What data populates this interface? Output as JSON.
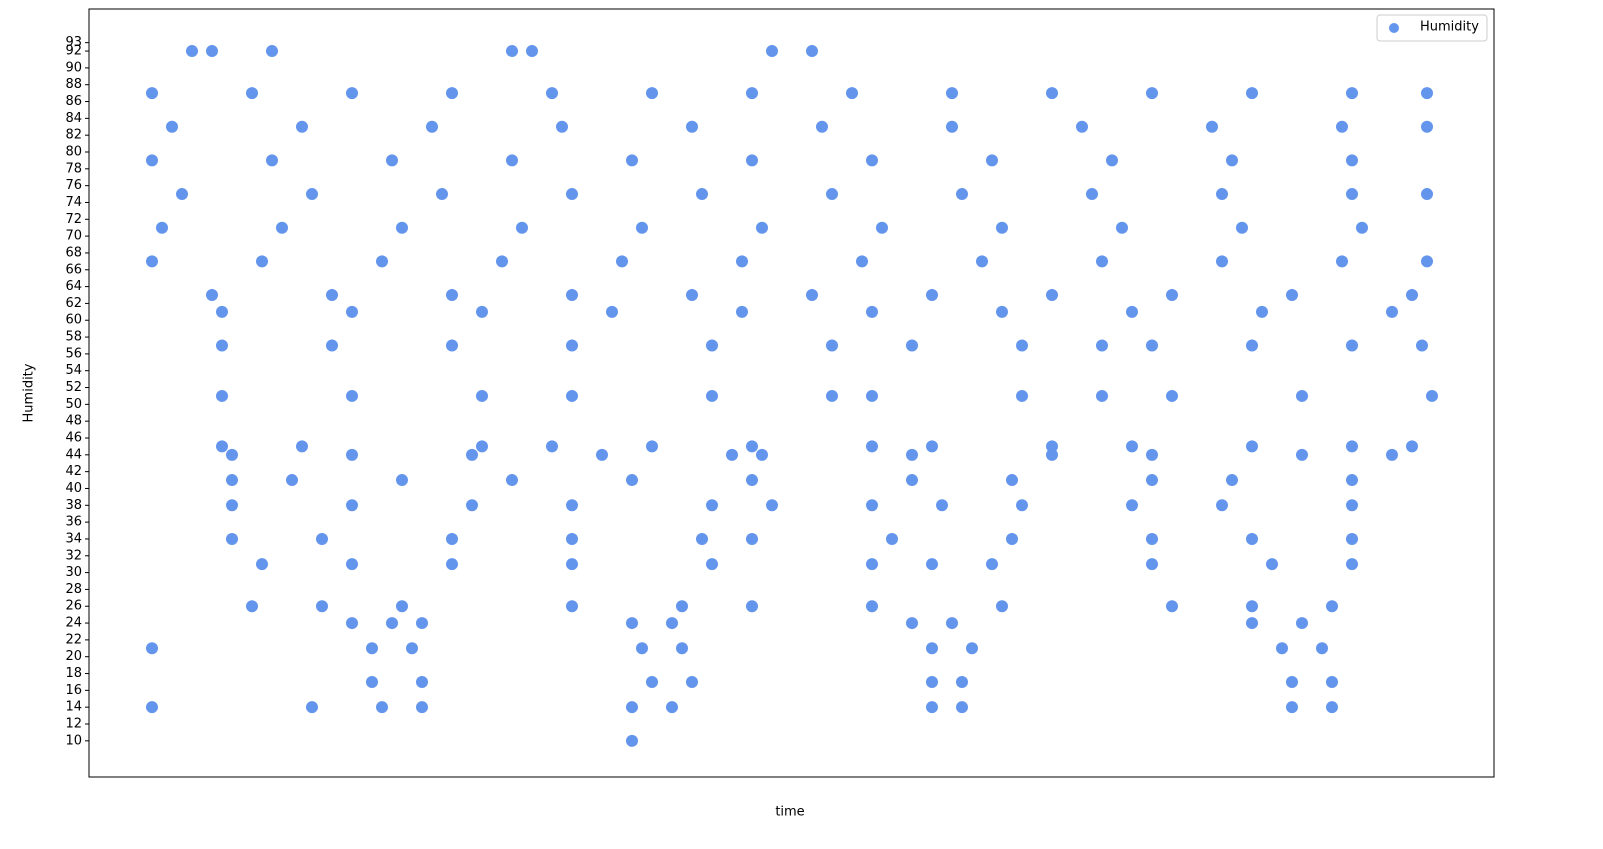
{
  "chart_data": {
    "type": "scatter",
    "x_label": "time",
    "y_label": "Humidity",
    "xlim": [
      -63,
      1342
    ],
    "ylim": [
      5.7,
      97
    ],
    "yticks": [
      10,
      12,
      14,
      16,
      18,
      20,
      22,
      24,
      26,
      28,
      30,
      32,
      34,
      36,
      38,
      40,
      42,
      44,
      46,
      48,
      50,
      52,
      54,
      56,
      58,
      60,
      62,
      64,
      66,
      68,
      70,
      72,
      74,
      76,
      78,
      80,
      82,
      84,
      86,
      88,
      90,
      92,
      93
    ],
    "legend": "upper right",
    "x": [
      0,
      100,
      200,
      300,
      400,
      500,
      600,
      700,
      800,
      900,
      1000,
      1100,
      1200,
      1275,
      20,
      150,
      280,
      410,
      540,
      670,
      800,
      930,
      1060,
      1190,
      1275,
      0,
      120,
      240,
      360,
      480,
      600,
      720,
      840,
      960,
      1080,
      1200,
      30,
      160,
      290,
      420,
      550,
      680,
      810,
      940,
      1070,
      1200,
      1275,
      10,
      130,
      250,
      370,
      490,
      610,
      730,
      850,
      970,
      1090,
      1210,
      0,
      110,
      230,
      350,
      470,
      590,
      710,
      830,
      950,
      1070,
      1190,
      1275,
      60,
      180,
      300,
      420,
      540,
      660,
      780,
      900,
      1020,
      1140,
      1260,
      70,
      200,
      330,
      460,
      590,
      720,
      850,
      980,
      1110,
      1240,
      70,
      180,
      300,
      420,
      560,
      680,
      760,
      870,
      950,
      1000,
      1100,
      1200,
      1270,
      70,
      200,
      330,
      420,
      560,
      680,
      720,
      870,
      950,
      1020,
      1150,
      1280,
      70,
      150,
      330,
      400,
      500,
      600,
      720,
      780,
      900,
      980,
      1100,
      1200,
      1260,
      80,
      200,
      320,
      450,
      580,
      610,
      760,
      900,
      1000,
      1150,
      1240,
      80,
      140,
      250,
      360,
      480,
      600,
      760,
      860,
      1000,
      1080,
      1200,
      80,
      200,
      320,
      420,
      560,
      620,
      720,
      790,
      870,
      980,
      1070,
      1200,
      80,
      170,
      300,
      420,
      550,
      600,
      740,
      860,
      1000,
      1100,
      1200,
      110,
      200,
      300,
      420,
      560,
      720,
      780,
      840,
      1000,
      1120,
      1200,
      100,
      170,
      250,
      420,
      530,
      600,
      720,
      850,
      1020,
      1100,
      1180,
      200,
      240,
      270,
      480,
      520,
      760,
      800,
      1100,
      1150,
      0,
      220,
      260,
      490,
      530,
      780,
      820,
      1130,
      1170,
      220,
      270,
      500,
      540,
      780,
      810,
      1140,
      1180,
      0,
      160,
      230,
      270,
      480,
      520,
      780,
      810,
      1140,
      1180,
      40,
      60,
      120,
      360,
      380,
      620,
      660,
      480
    ],
    "series": [
      {
        "name": "Humidity",
        "color": "#6495ed",
        "values": [
          87,
          87,
          87,
          87,
          87,
          87,
          87,
          87,
          87,
          87,
          87,
          87,
          87,
          87,
          83,
          83,
          83,
          83,
          83,
          83,
          83,
          83,
          83,
          83,
          83,
          79,
          79,
          79,
          79,
          79,
          79,
          79,
          79,
          79,
          79,
          79,
          75,
          75,
          75,
          75,
          75,
          75,
          75,
          75,
          75,
          75,
          75,
          71,
          71,
          71,
          71,
          71,
          71,
          71,
          71,
          71,
          71,
          71,
          67,
          67,
          67,
          67,
          67,
          67,
          67,
          67,
          67,
          67,
          67,
          67,
          63,
          63,
          63,
          63,
          63,
          63,
          63,
          63,
          63,
          63,
          63,
          61,
          61,
          61,
          61,
          61,
          61,
          61,
          61,
          61,
          61,
          57,
          57,
          57,
          57,
          57,
          57,
          57,
          57,
          57,
          57,
          57,
          57,
          57,
          51,
          51,
          51,
          51,
          51,
          51,
          51,
          51,
          51,
          51,
          51,
          51,
          45,
          45,
          45,
          45,
          45,
          45,
          45,
          45,
          45,
          45,
          45,
          45,
          45,
          44,
          44,
          44,
          44,
          44,
          44,
          44,
          44,
          44,
          44,
          44,
          41,
          41,
          41,
          41,
          41,
          41,
          41,
          41,
          41,
          41,
          41,
          38,
          38,
          38,
          38,
          38,
          38,
          38,
          38,
          38,
          38,
          38,
          38,
          34,
          34,
          34,
          34,
          34,
          34,
          34,
          34,
          34,
          34,
          34,
          31,
          31,
          31,
          31,
          31,
          31,
          31,
          31,
          31,
          31,
          31,
          26,
          26,
          26,
          26,
          26,
          26,
          26,
          26,
          26,
          26,
          26,
          24,
          24,
          24,
          24,
          24,
          24,
          24,
          24,
          24,
          21,
          21,
          21,
          21,
          21,
          21,
          21,
          21,
          21,
          17,
          17,
          17,
          17,
          17,
          17,
          17,
          17,
          14,
          14,
          14,
          14,
          14,
          14,
          14,
          14,
          14,
          14,
          92,
          92,
          92,
          92,
          92,
          92,
          92,
          10
        ]
      }
    ]
  }
}
